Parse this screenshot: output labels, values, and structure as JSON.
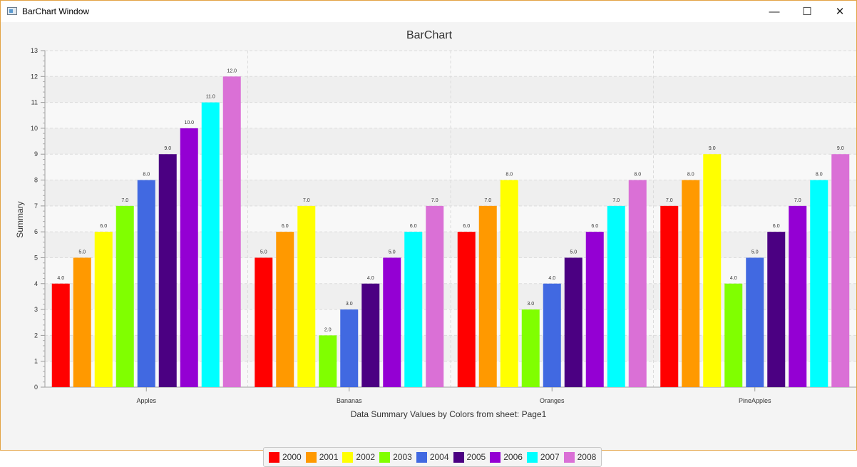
{
  "window": {
    "title": "BarChart Window",
    "minimize": "—",
    "maximize": "☐",
    "close": "✕"
  },
  "chart_data": {
    "type": "bar",
    "title": "BarChart",
    "xlabel": "Data Summary Values by Colors from sheet: Page1",
    "ylabel": "Summary",
    "ylim": [
      0,
      13
    ],
    "yticks": [
      "0",
      "1",
      "2",
      "3",
      "4",
      "5",
      "6",
      "7",
      "8",
      "9",
      "10",
      "11",
      "12",
      "13"
    ],
    "grid": true,
    "legend_position": "bottom",
    "categories": [
      "Apples",
      "Bananas",
      "Oranges",
      "PineApples"
    ],
    "series": [
      {
        "name": "2000",
        "color": "#ff0000",
        "values": [
          4,
          5,
          6,
          7
        ],
        "labels": [
          "4.0",
          "5.0",
          "6.0",
          "7.0"
        ]
      },
      {
        "name": "2001",
        "color": "#ff9900",
        "values": [
          5,
          6,
          7,
          8
        ],
        "labels": [
          "5.0",
          "6.0",
          "7.0",
          "8.0"
        ]
      },
      {
        "name": "2002",
        "color": "#ffff00",
        "values": [
          6,
          7,
          8,
          9
        ],
        "labels": [
          "6.0",
          "7.0",
          "8.0",
          "9.0"
        ]
      },
      {
        "name": "2003",
        "color": "#80ff00",
        "values": [
          7,
          2,
          3,
          4
        ],
        "labels": [
          "7.0",
          "2.0",
          "3.0",
          "4.0"
        ]
      },
      {
        "name": "2004",
        "color": "#4169e1",
        "values": [
          8,
          3,
          4,
          5
        ],
        "labels": [
          "8.0",
          "3.0",
          "4.0",
          "5.0"
        ]
      },
      {
        "name": "2005",
        "color": "#4b0082",
        "values": [
          9,
          4,
          5,
          6
        ],
        "labels": [
          "9.0",
          "4.0",
          "5.0",
          "6.0"
        ]
      },
      {
        "name": "2006",
        "color": "#9400d3",
        "values": [
          10,
          5,
          6,
          7
        ],
        "labels": [
          "10.0",
          "5.0",
          "6.0",
          "7.0"
        ]
      },
      {
        "name": "2007",
        "color": "#00ffff",
        "values": [
          11,
          6,
          7,
          8
        ],
        "labels": [
          "11.0",
          "6.0",
          "7.0",
          "8.0"
        ]
      },
      {
        "name": "2008",
        "color": "#da70d6",
        "values": [
          12,
          7,
          8,
          9
        ],
        "labels": [
          "12.0",
          "7.0",
          "8.0",
          "9.0"
        ]
      }
    ]
  }
}
